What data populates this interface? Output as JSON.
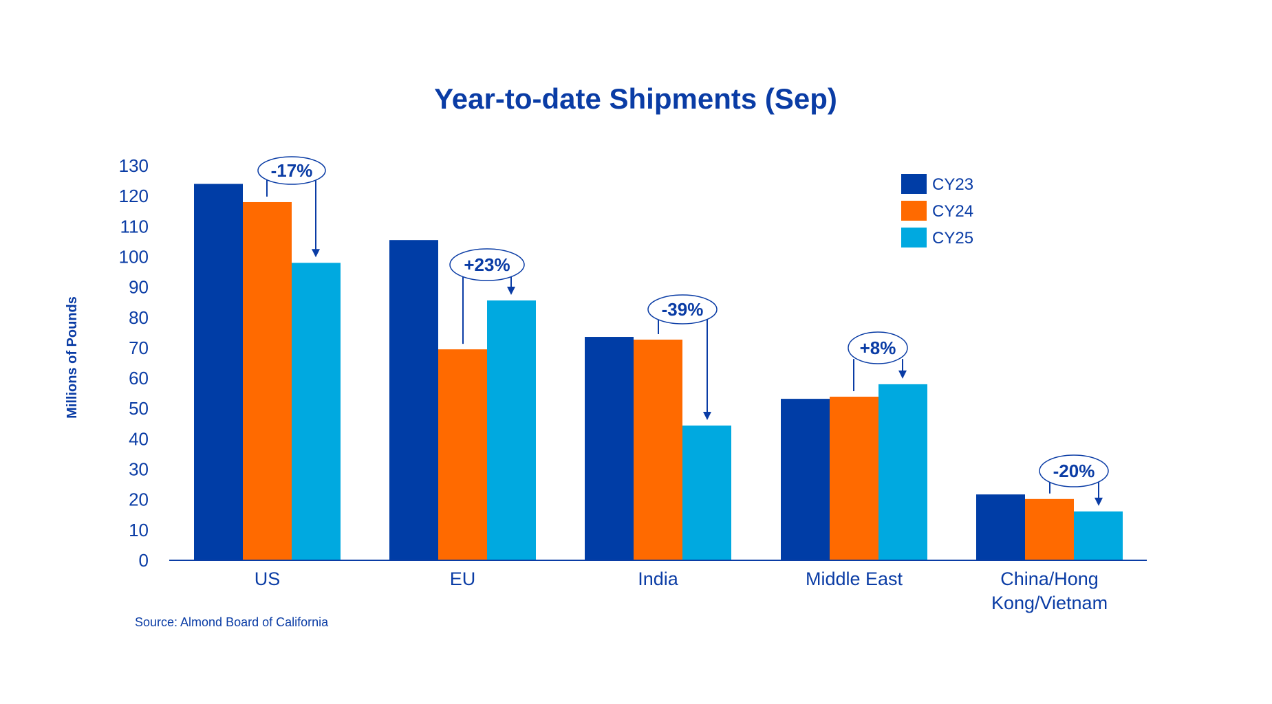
{
  "chart_data": {
    "type": "bar",
    "title": "Year-to-date Shipments (Sep)",
    "xlabel": "",
    "ylabel": "Millions of Pounds",
    "ylim": [
      0,
      130
    ],
    "yticks": [
      0,
      10,
      20,
      30,
      40,
      50,
      60,
      70,
      80,
      90,
      100,
      110,
      120,
      130
    ],
    "grid": false,
    "categories": [
      "US",
      "EU",
      "India",
      "Middle East",
      "China/Hong Kong/Vietnam"
    ],
    "category_label_lines": [
      [
        "US"
      ],
      [
        "EU"
      ],
      [
        "India"
      ],
      [
        "Middle East"
      ],
      [
        "China/Hong",
        "Kong/Vietnam"
      ]
    ],
    "series": [
      {
        "name": "CY23",
        "color": "#003DA6",
        "values": [
          124,
          105.5,
          73.6,
          53.2,
          21.7
        ]
      },
      {
        "name": "CY24",
        "color": "#FF6A00",
        "values": [
          118,
          69.5,
          72.7,
          53.9,
          20.2
        ]
      },
      {
        "name": "CY25",
        "color": "#00A9E0",
        "values": [
          98,
          85.6,
          44.4,
          58.0,
          16.1
        ]
      }
    ],
    "legend_position": "top-right",
    "annotations": [
      {
        "category": "US",
        "text": "-17%",
        "from": "CY24",
        "to": "CY25"
      },
      {
        "category": "EU",
        "text": "+23%",
        "from": "CY24",
        "to": "CY25"
      },
      {
        "category": "India",
        "text": "-39%",
        "from": "CY24",
        "to": "CY25"
      },
      {
        "category": "Middle East",
        "text": "+8%",
        "from": "CY24",
        "to": "CY25"
      },
      {
        "category": "China/Hong Kong/Vietnam",
        "text": "-20%",
        "from": "CY24",
        "to": "CY25"
      }
    ],
    "source": "Source: Almond Board of California"
  },
  "colors": {
    "text": "#0a3ca5",
    "axis": "#0a3ca5"
  }
}
